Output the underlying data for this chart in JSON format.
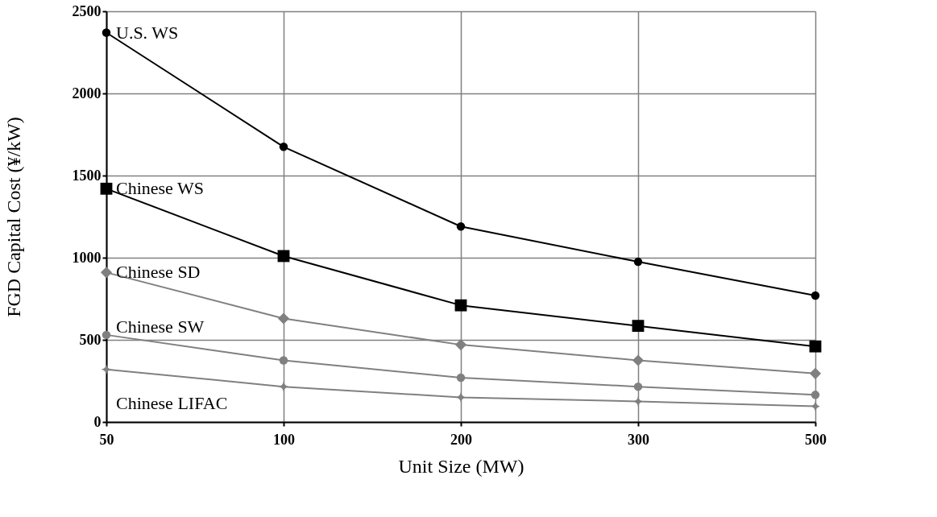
{
  "chart_data": {
    "type": "line",
    "xlabel": "Unit Size (MW)",
    "ylabel": "FGD Capital Cost (¥/kW)",
    "categories": [
      "50",
      "100",
      "200",
      "300",
      "500"
    ],
    "ylim": [
      0,
      2500
    ],
    "yticks": [
      0,
      500,
      1000,
      1500,
      2000,
      2500
    ],
    "grid": true,
    "series": [
      {
        "name": "U.S. WS",
        "color": "#000000",
        "marker": "circle",
        "values": [
          2370,
          1675,
          1190,
          975,
          770
        ]
      },
      {
        "name": "Chinese WS",
        "color": "#000000",
        "marker": "square",
        "values": [
          1420,
          1010,
          710,
          585,
          460
        ]
      },
      {
        "name": "Chinese SD",
        "color": "#808080",
        "marker": "diamond",
        "values": [
          910,
          630,
          470,
          375,
          295
        ]
      },
      {
        "name": "Chinese SW",
        "color": "#808080",
        "marker": "circle",
        "values": [
          530,
          375,
          270,
          215,
          165
        ]
      },
      {
        "name": "Chinese LIFAC",
        "color": "#808080",
        "marker": "star",
        "values": [
          320,
          215,
          150,
          125,
          95
        ]
      }
    ]
  }
}
